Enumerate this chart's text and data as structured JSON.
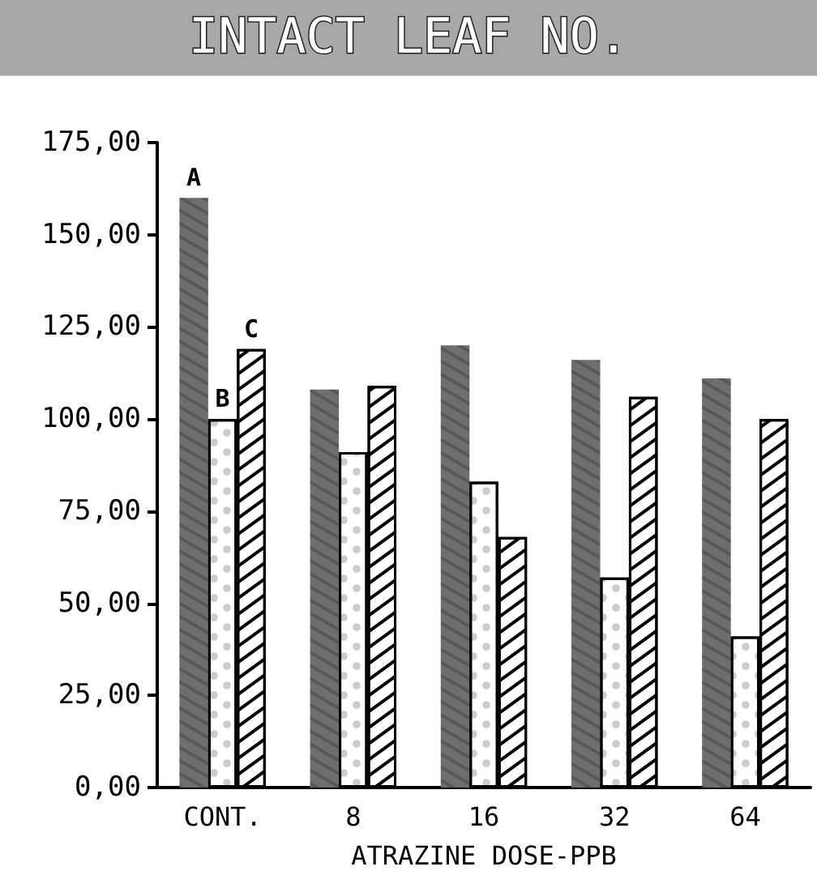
{
  "chart_data": {
    "type": "bar",
    "title": "INTACT LEAF NO.",
    "xlabel": "ATRAZINE DOSE-PPB",
    "categories": [
      "CONT.",
      "8",
      "16",
      "32",
      "64"
    ],
    "series": [
      {
        "name": "A",
        "color": "#6e6e6e",
        "values": [
          160,
          108,
          120,
          116,
          111
        ]
      },
      {
        "name": "B",
        "color": "#ffffff",
        "values": [
          100,
          91,
          83,
          57,
          41
        ]
      },
      {
        "name": "C",
        "color": "#ffffff",
        "values": [
          119,
          109,
          68,
          106,
          100
        ]
      }
    ],
    "ylim": [
      0,
      175
    ],
    "yticks": [
      {
        "value": 0,
        "label": "0,00"
      },
      {
        "value": 25,
        "label": "25,00"
      },
      {
        "value": 50,
        "label": "50,00"
      },
      {
        "value": 75,
        "label": "75,00"
      },
      {
        "value": 100,
        "label": "100,00"
      },
      {
        "value": 125,
        "label": "125,00"
      },
      {
        "value": 150,
        "label": "150,00"
      },
      {
        "value": 175,
        "label": "175,00"
      }
    ],
    "grid": false,
    "legend": false
  }
}
